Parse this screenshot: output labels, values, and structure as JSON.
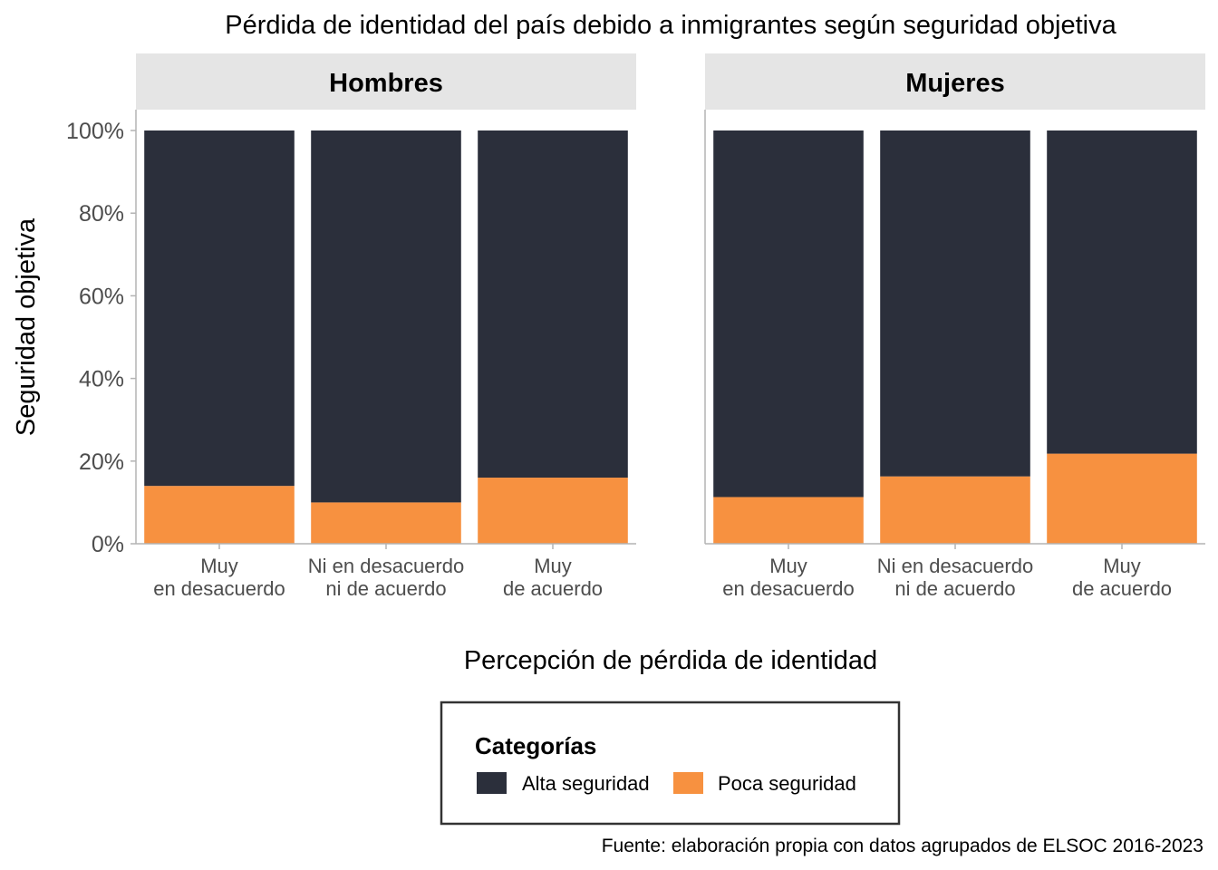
{
  "chart_data": {
    "type": "bar",
    "stacked": true,
    "title": "Pérdida de identidad del país debido a inmigrantes según seguridad objetiva",
    "xlabel": "Percepción de pérdida de identidad",
    "ylabel": "Seguridad objetiva",
    "ylim": [
      0,
      1
    ],
    "yticks": [
      "0%",
      "20%",
      "40%",
      "60%",
      "80%",
      "100%"
    ],
    "categories": [
      [
        "Muy",
        "en desacuerdo"
      ],
      [
        "Ni en desacuerdo",
        "ni de acuerdo"
      ],
      [
        "Muy",
        "de acuerdo"
      ]
    ],
    "facets": [
      {
        "label": "Hombres",
        "series": [
          {
            "name": "Poca seguridad",
            "values": [
              0.14,
              0.1,
              0.16
            ]
          },
          {
            "name": "Alta seguridad",
            "values": [
              0.86,
              0.9,
              0.84
            ]
          }
        ]
      },
      {
        "label": "Mujeres",
        "series": [
          {
            "name": "Poca seguridad",
            "values": [
              0.113,
              0.163,
              0.218
            ]
          },
          {
            "name": "Alta seguridad",
            "values": [
              0.887,
              0.837,
              0.782
            ]
          }
        ]
      }
    ],
    "legend": {
      "title": "Categorías",
      "position": "bottom",
      "items": [
        {
          "label": "Alta seguridad",
          "color": "#2b2f3b"
        },
        {
          "label": "Poca seguridad",
          "color": "#f79140"
        }
      ]
    },
    "caption": "Fuente: elaboración propia con datos agrupados de ELSOC 2016-2023",
    "colors": {
      "Alta seguridad": "#2b2f3b",
      "Poca seguridad": "#f79140",
      "strip": "#e5e5e5",
      "axis": "#b3b3b3"
    },
    "grid": false
  }
}
